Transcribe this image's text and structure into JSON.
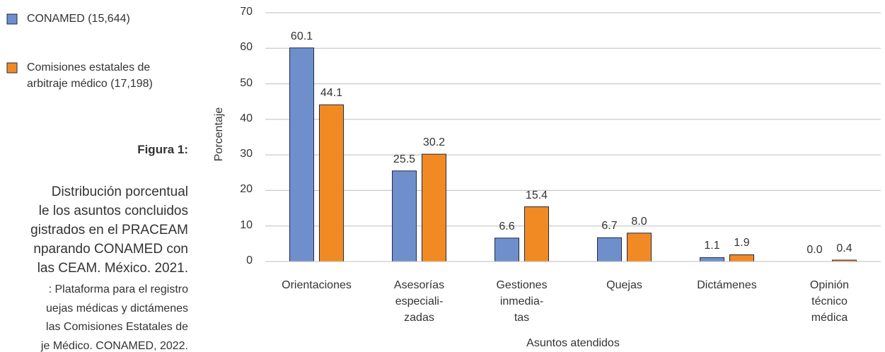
{
  "caption": {
    "label": "Figura 1:",
    "description": [
      "Distribución porcentual",
      "le los asuntos concluidos",
      "gistrados en el PRACEAM",
      "nparando CONAMED con",
      "las CEAM. México. 2021."
    ],
    "source": [
      ": Plataforma para el registro",
      "uejas médicas y dictámenes",
      "las Comisiones Estatales de",
      "je Médico. CONAMED, 2022."
    ]
  },
  "chart_data": {
    "type": "bar",
    "categories": [
      "Orientaciones",
      "Asesorías\nespeciali-\nzadas",
      "Gestiones\ninmedia-\ntas",
      "Quejas",
      "Dictámenes",
      "Opinión\ntécnico\nmédica"
    ],
    "series": [
      {
        "name": "CONAMED (15,644)",
        "color": "#6f8fcc",
        "values": [
          60.1,
          25.5,
          6.6,
          6.7,
          1.1,
          0
        ],
        "value_labels": [
          "60.1",
          "25.5",
          "6.6",
          "6.7",
          "1.1",
          "0.0"
        ]
      },
      {
        "name": "Comisiones estatales de arbitraje médico (17,198)",
        "color": "#f28a24",
        "values": [
          44.1,
          30.2,
          15.4,
          8,
          1.9,
          0.4
        ],
        "value_labels": [
          "44.1",
          "30.2",
          "15.4",
          "8.0",
          "1.9",
          "0.4"
        ]
      }
    ],
    "xlabel": "Asuntos atendidos",
    "ylabel": "Porcentaje",
    "ylim": [
      0,
      70
    ],
    "yticks": [
      0,
      10,
      20,
      30,
      40,
      50,
      60,
      70
    ],
    "grid": true
  }
}
